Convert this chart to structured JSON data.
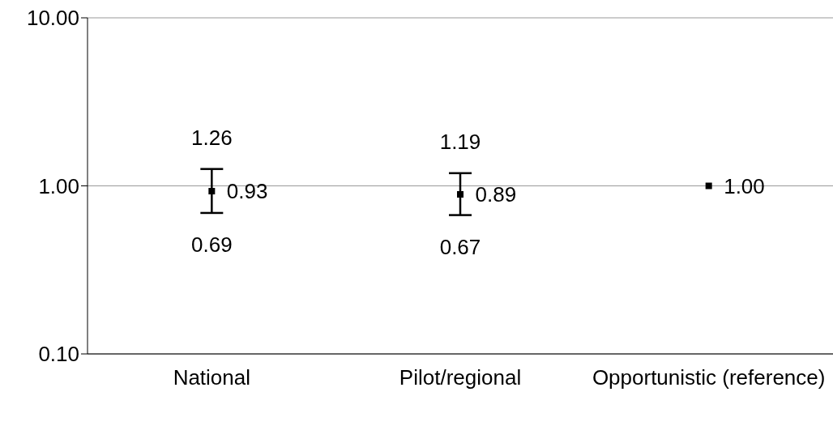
{
  "chart_data": {
    "type": "scatter",
    "categories": [
      "National",
      "Pilot/regional",
      "Opportunistic (reference)"
    ],
    "series": [
      {
        "color": "#000000",
        "values": [
          0.93,
          0.89,
          1.0
        ],
        "errors": [
          [
            0.69,
            1.26
          ],
          [
            0.67,
            1.19
          ],
          null
        ],
        "value_labels": [
          "0.93",
          "0.89",
          "1.00"
        ]
      }
    ],
    "log": "y",
    "ylim": [
      0.1,
      10
    ],
    "yticks": [
      {
        "value": 0.1,
        "label": "0.10"
      },
      {
        "value": 1,
        "label": "1.00"
      },
      {
        "value": 10,
        "label": "10.00"
      }
    ],
    "grid": "y",
    "marker": "square",
    "annotations": [
      {
        "text": "1.26",
        "x": "National",
        "y": 1.26
      },
      {
        "text": "0.69",
        "x": "National",
        "y": 0.69
      },
      {
        "text": "1.19",
        "x": "Pilot/regional",
        "y": 1.19
      },
      {
        "text": "0.67",
        "x": "Pilot/regional",
        "y": 0.67
      }
    ]
  }
}
